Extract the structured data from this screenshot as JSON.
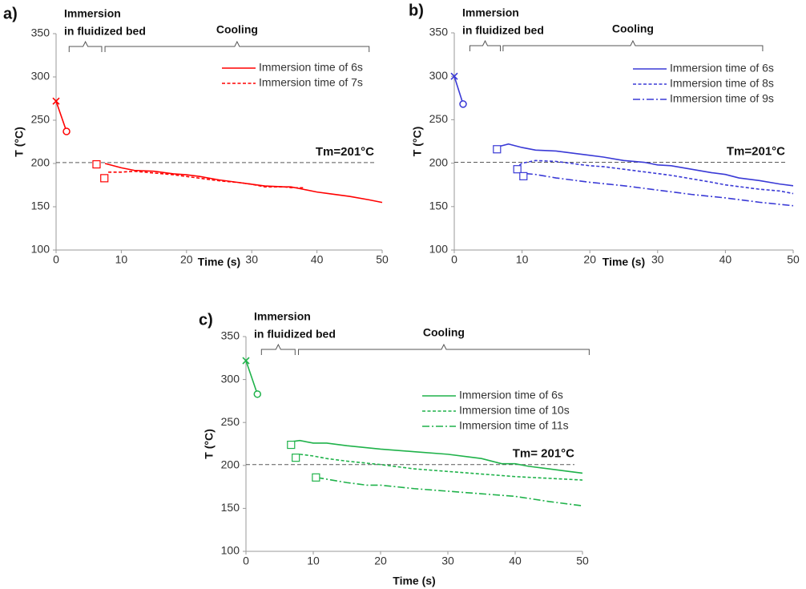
{
  "chart_data": [
    {
      "type": "line",
      "panel": "a)",
      "xlabel": "Time (s)",
      "ylabel": "T (°C)",
      "xlim": [
        0,
        50
      ],
      "ylim": [
        100,
        350
      ],
      "xticks": [
        0,
        10,
        20,
        30,
        40,
        50
      ],
      "yticks": [
        100,
        150,
        200,
        250,
        300,
        350
      ],
      "legend": "upper right",
      "reference_line": {
        "value": 201,
        "label": "Tm=201°C"
      },
      "brackets": [
        {
          "label": [
            "Immersion",
            "in fluidized bed"
          ],
          "x": [
            2,
            7
          ]
        },
        {
          "label": [
            "Cooling"
          ],
          "x": [
            7.5,
            48
          ]
        }
      ],
      "points": [
        {
          "x": 0,
          "y": 272,
          "marker": "x",
          "color": "#ff0000"
        },
        {
          "x": 1.6,
          "y": 237,
          "marker": "circle",
          "color": "#ff0000"
        },
        {
          "x": 6.2,
          "y": 199,
          "marker": "square",
          "color": "#ff0000"
        },
        {
          "x": 7.4,
          "y": 183,
          "marker": "square",
          "color": "#ff0000"
        },
        {
          "x": 0,
          "y": 272,
          "marker": "line-start",
          "color": "#ff0000"
        }
      ],
      "series": [
        {
          "name": "Immersion time of 6s",
          "color": "#ff0000",
          "dash": "solid",
          "x": [
            7.5,
            10,
            12,
            15,
            18,
            20,
            22,
            25,
            28,
            30,
            32,
            35,
            36,
            38,
            40,
            42,
            45,
            48,
            50
          ],
          "values": [
            200,
            195,
            192,
            191,
            188,
            187,
            185,
            181,
            178,
            176,
            174,
            173,
            173,
            170,
            167,
            165,
            162,
            158,
            155
          ]
        },
        {
          "name": "Immersion time of 7s",
          "color": "#ff0000",
          "dash": "dashed",
          "x": [
            8,
            10,
            12,
            15,
            18,
            20,
            22,
            25,
            28,
            30,
            32,
            35,
            36,
            38
          ],
          "values": [
            190,
            190,
            191,
            189,
            187,
            185,
            183,
            180,
            178,
            176,
            173,
            173,
            172,
            172
          ]
        }
      ]
    },
    {
      "type": "line",
      "panel": "b)",
      "xlabel": "Time (s)",
      "ylabel": "T (°C)",
      "xlim": [
        0,
        50
      ],
      "ylim": [
        100,
        350
      ],
      "xticks": [
        0,
        10,
        20,
        30,
        40,
        50
      ],
      "yticks": [
        100,
        150,
        200,
        250,
        300,
        350
      ],
      "legend": "upper right",
      "reference_line": {
        "value": 201,
        "label": "Tm=201°C"
      },
      "brackets": [
        {
          "label": [
            "Immersion",
            "in fluidized bed"
          ],
          "x": [
            2.3,
            6.8
          ]
        },
        {
          "label": [
            "Cooling"
          ],
          "x": [
            7.2,
            45.5
          ]
        }
      ],
      "points": [
        {
          "x": 0,
          "y": 300,
          "marker": "x",
          "color": "#3a3ad6"
        },
        {
          "x": 1.3,
          "y": 268,
          "marker": "circle",
          "color": "#3a3ad6"
        },
        {
          "x": 6.3,
          "y": 216,
          "marker": "square",
          "color": "#3a3ad6"
        },
        {
          "x": 9.3,
          "y": 193,
          "marker": "square",
          "color": "#3a3ad6"
        },
        {
          "x": 10.2,
          "y": 185,
          "marker": "square",
          "color": "#3a3ad6"
        }
      ],
      "series": [
        {
          "name": "Immersion time of 6s",
          "color": "#3a3ad6",
          "dash": "solid",
          "x": [
            6.5,
            8,
            10,
            12,
            15,
            18,
            20,
            22,
            25,
            28,
            30,
            32,
            35,
            38,
            40,
            42,
            45,
            48,
            50
          ],
          "values": [
            219,
            222,
            218,
            215,
            214,
            211,
            209,
            207,
            203,
            201,
            198,
            197,
            193,
            189,
            187,
            183,
            180,
            176,
            174
          ]
        },
        {
          "name": "Immersion time of 8s",
          "color": "#3a3ad6",
          "dash": "dashed",
          "x": [
            9,
            10,
            12,
            15,
            18,
            20,
            22,
            25,
            28,
            30,
            32,
            35,
            38,
            40,
            42,
            45,
            48,
            50
          ],
          "values": [
            194,
            200,
            203,
            202,
            199,
            197,
            196,
            193,
            190,
            188,
            186,
            182,
            178,
            175,
            173,
            170,
            168,
            165
          ]
        },
        {
          "name": "Immersion time of 9s",
          "color": "#3a3ad6",
          "dash": "dashdot",
          "x": [
            10.5,
            12,
            15,
            18,
            20,
            25,
            30,
            35,
            40,
            45,
            50
          ],
          "values": [
            188,
            187,
            183,
            180,
            178,
            174,
            169,
            164,
            160,
            155,
            151
          ]
        }
      ]
    },
    {
      "type": "line",
      "panel": "c)",
      "xlabel": "Time (s)",
      "ylabel": "T (°C)",
      "xlim": [
        0,
        50
      ],
      "ylim": [
        100,
        350
      ],
      "xticks": [
        0,
        10,
        20,
        30,
        40,
        50
      ],
      "yticks": [
        100,
        150,
        200,
        250,
        300,
        350
      ],
      "legend": "upper right",
      "reference_line": {
        "value": 201,
        "label": "Tm= 201°C"
      },
      "brackets": [
        {
          "label": [
            "Immersion",
            "in fluidized bed"
          ],
          "x": [
            2.3,
            7.3
          ]
        },
        {
          "label": [
            "Cooling"
          ],
          "x": [
            7.8,
            51
          ]
        }
      ],
      "points": [
        {
          "x": 0,
          "y": 322,
          "marker": "x",
          "color": "#1fb24a"
        },
        {
          "x": 1.7,
          "y": 283,
          "marker": "circle",
          "color": "#1fb24a"
        },
        {
          "x": 6.7,
          "y": 224,
          "marker": "square",
          "color": "#1fb24a"
        },
        {
          "x": 7.4,
          "y": 209,
          "marker": "square",
          "color": "#1fb24a"
        },
        {
          "x": 10.4,
          "y": 186,
          "marker": "square",
          "color": "#1fb24a"
        }
      ],
      "series": [
        {
          "name": "Immersion time of 6s",
          "color": "#1fb24a",
          "dash": "solid",
          "x": [
            7,
            8,
            10,
            12,
            15,
            20,
            25,
            30,
            33,
            35,
            38,
            40,
            42,
            45,
            48,
            50
          ],
          "values": [
            228,
            229,
            226,
            226,
            223,
            219,
            216,
            213,
            210,
            208,
            202,
            202,
            199,
            196,
            193,
            191
          ]
        },
        {
          "name": "Immersion time of 10s",
          "color": "#1fb24a",
          "dash": "dashed",
          "x": [
            8,
            10,
            12,
            15,
            20,
            25,
            30,
            35,
            40,
            45,
            50
          ],
          "values": [
            213,
            211,
            208,
            205,
            201,
            196,
            193,
            190,
            187,
            185,
            183
          ]
        },
        {
          "name": "Immersion time of 11s",
          "color": "#1fb24a",
          "dash": "dashdot",
          "x": [
            10.5,
            12,
            15,
            18,
            20,
            25,
            30,
            35,
            40,
            45,
            50
          ],
          "values": [
            186,
            184,
            180,
            177,
            177,
            173,
            170,
            167,
            164,
            158,
            153
          ]
        }
      ]
    }
  ]
}
